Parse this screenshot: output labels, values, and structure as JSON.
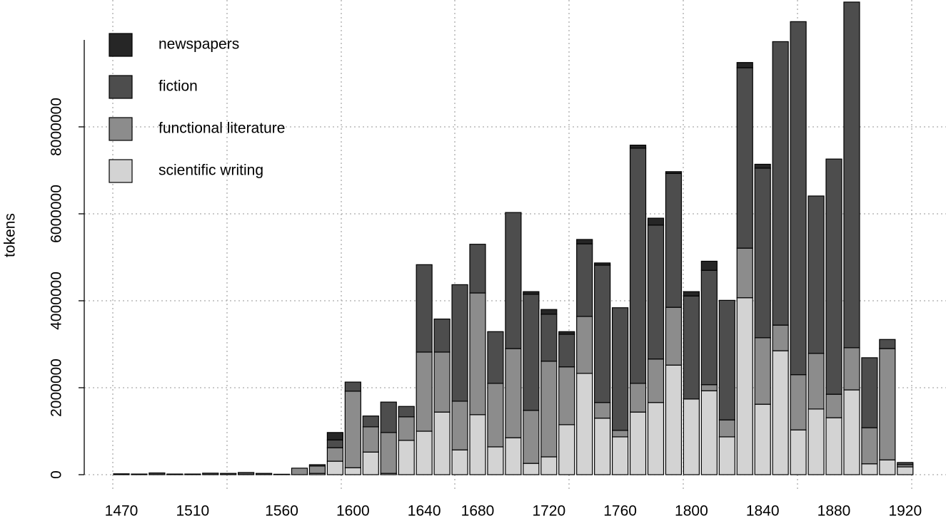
{
  "chart_data": {
    "type": "bar",
    "stacked": true,
    "ylabel": "tokens",
    "categories": [
      1470,
      null,
      null,
      null,
      1510,
      null,
      null,
      null,
      null,
      1560,
      null,
      null,
      null,
      1600,
      null,
      null,
      null,
      1640,
      null,
      null,
      1680,
      null,
      null,
      null,
      1720,
      null,
      null,
      null,
      1760,
      null,
      null,
      null,
      1800,
      null,
      null,
      null,
      1840,
      null,
      null,
      null,
      1880,
      null,
      null,
      null,
      1920
    ],
    "series": [
      {
        "name": "scientific writing",
        "color": "#d3d3d3",
        "values": [
          0,
          0,
          0,
          0,
          0,
          0,
          0,
          0,
          0,
          0,
          0,
          30000,
          310000,
          160000,
          520000,
          30000,
          790000,
          1000000,
          1440000,
          570000,
          1380000,
          640000,
          850000,
          260000,
          410000,
          1150000,
          2330000,
          1300000,
          870000,
          1440000,
          1660000,
          2520000,
          1740000,
          1930000,
          870000,
          4070000,
          1620000,
          2850000,
          1030000,
          1510000,
          1310000,
          1950000,
          250000,
          340000,
          180000
        ]
      },
      {
        "name": "functional literature",
        "color": "#8c8c8c",
        "values": [
          0,
          0,
          0,
          0,
          0,
          0,
          0,
          0,
          0,
          0,
          150000,
          170000,
          310000,
          1760000,
          580000,
          940000,
          540000,
          1820000,
          1380000,
          1120000,
          2800000,
          1460000,
          2050000,
          1220000,
          2200000,
          1330000,
          1310000,
          360000,
          150000,
          660000,
          1000000,
          1330000,
          0,
          140000,
          390000,
          1140000,
          1530000,
          590000,
          1270000,
          1280000,
          540000,
          970000,
          830000,
          2560000,
          50000
        ]
      },
      {
        "name": "fiction",
        "color": "#4d4d4d",
        "values": [
          20000,
          15000,
          40000,
          15000,
          15000,
          35000,
          30000,
          50000,
          30000,
          10000,
          0,
          30000,
          180000,
          210000,
          250000,
          700000,
          240000,
          2010000,
          760000,
          2680000,
          1120000,
          1190000,
          3130000,
          2670000,
          1080000,
          750000,
          1670000,
          3160000,
          2820000,
          5410000,
          3080000,
          3080000,
          2370000,
          2630000,
          2750000,
          4150000,
          3900000,
          6520000,
          8120000,
          3620000,
          5410000,
          7950000,
          1610000,
          210000,
          50000
        ]
      },
      {
        "name": "newspapers",
        "color": "#262626",
        "values": [
          0,
          0,
          0,
          0,
          0,
          0,
          0,
          0,
          0,
          0,
          0,
          0,
          170000,
          0,
          0,
          0,
          0,
          0,
          0,
          0,
          0,
          0,
          0,
          60000,
          110000,
          60000,
          100000,
          50000,
          0,
          70000,
          160000,
          40000,
          100000,
          210000,
          0,
          120000,
          90000,
          0,
          0,
          0,
          0,
          0,
          0,
          0,
          0
        ]
      }
    ],
    "ylim": [
      0,
      10885000
    ],
    "yticks": [
      0,
      2000000,
      4000000,
      6000000,
      8000000
    ],
    "grid": true,
    "legend": "top-left"
  }
}
